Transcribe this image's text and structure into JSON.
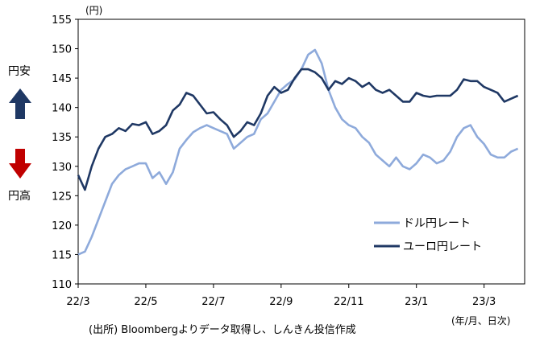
{
  "side_labels": {
    "top": "円安",
    "bottom": "円高",
    "up_arrow_color": "#1f3864",
    "down_arrow_color": "#c00000"
  },
  "footer": {
    "source": "(出所) Bloombergよりデータ取得し、しんきん投信作成",
    "x_unit": "(年/月、日次)"
  },
  "chart_data": {
    "type": "line",
    "y_unit": "(円)",
    "ylim": [
      110,
      155
    ],
    "yticks": [
      110,
      115,
      120,
      125,
      130,
      135,
      140,
      145,
      150,
      155
    ],
    "xticks": [
      "22/3",
      "22/5",
      "22/7",
      "22/9",
      "22/11",
      "23/1",
      "23/3"
    ],
    "xlim": [
      0,
      13.2
    ],
    "grid": false,
    "legend_position": "right",
    "series": [
      {
        "name": "ドル円レート",
        "color": "#8eaadb",
        "x": [
          0,
          0.2,
          0.4,
          0.6,
          0.8,
          1.0,
          1.2,
          1.4,
          1.6,
          1.8,
          2.0,
          2.2,
          2.4,
          2.6,
          2.8,
          3.0,
          3.2,
          3.4,
          3.6,
          3.8,
          4.0,
          4.2,
          4.4,
          4.6,
          4.8,
          5.0,
          5.2,
          5.4,
          5.6,
          5.8,
          6.0,
          6.2,
          6.4,
          6.6,
          6.8,
          7.0,
          7.2,
          7.4,
          7.6,
          7.8,
          8.0,
          8.2,
          8.4,
          8.6,
          8.8,
          9.0,
          9.2,
          9.4,
          9.6,
          9.8,
          10.0,
          10.2,
          10.4,
          10.6,
          10.8,
          11.0,
          11.2,
          11.4,
          11.6,
          11.8,
          12.0,
          12.2,
          12.4,
          12.6,
          12.8,
          13.0
        ],
        "y": [
          115,
          115.5,
          118,
          121,
          124,
          127,
          128.5,
          129.5,
          130,
          130.5,
          130.5,
          128,
          129,
          127,
          129,
          133,
          134.5,
          135.8,
          136.5,
          137,
          136.5,
          136,
          135.5,
          133,
          134,
          135,
          135.5,
          138,
          139,
          141,
          143,
          144,
          144.8,
          146.5,
          149,
          149.8,
          147.5,
          143,
          140,
          138,
          137,
          136.5,
          135,
          134,
          132,
          131,
          130,
          131.5,
          130,
          129.5,
          130.5,
          132,
          131.5,
          130.5,
          131,
          132.5,
          135,
          136.5,
          137,
          135,
          133.8,
          132,
          131.5,
          131.5,
          132.5,
          133
        ]
      },
      {
        "name": "ユーロ円レート",
        "color": "#1f3864",
        "x": [
          0,
          0.2,
          0.4,
          0.6,
          0.8,
          1.0,
          1.2,
          1.4,
          1.6,
          1.8,
          2.0,
          2.2,
          2.4,
          2.6,
          2.8,
          3.0,
          3.2,
          3.4,
          3.6,
          3.8,
          4.0,
          4.2,
          4.4,
          4.6,
          4.8,
          5.0,
          5.2,
          5.4,
          5.6,
          5.8,
          6.0,
          6.2,
          6.4,
          6.6,
          6.8,
          7.0,
          7.2,
          7.4,
          7.6,
          7.8,
          8.0,
          8.2,
          8.4,
          8.6,
          8.8,
          9.0,
          9.2,
          9.4,
          9.6,
          9.8,
          10.0,
          10.2,
          10.4,
          10.6,
          10.8,
          11.0,
          11.2,
          11.4,
          11.6,
          11.8,
          12.0,
          12.2,
          12.4,
          12.6,
          12.8,
          13.0
        ],
        "y": [
          128.5,
          126,
          130,
          133,
          135,
          135.5,
          136.5,
          136,
          137.2,
          137,
          137.5,
          135.5,
          136,
          137,
          139.5,
          140.5,
          142.5,
          142,
          140.5,
          139,
          139.2,
          138,
          137,
          135,
          136,
          137.5,
          137,
          139,
          142,
          143.5,
          142.5,
          143,
          145,
          146.5,
          146.5,
          146,
          145,
          143,
          144.5,
          144,
          145,
          144.5,
          143.5,
          144.2,
          143,
          142.5,
          143,
          142,
          141,
          141,
          142.5,
          142,
          141.8,
          142,
          142,
          142,
          143,
          144.8,
          144.5,
          144.5,
          143.5,
          143,
          142.5,
          141,
          141.5,
          142
        ]
      }
    ]
  }
}
